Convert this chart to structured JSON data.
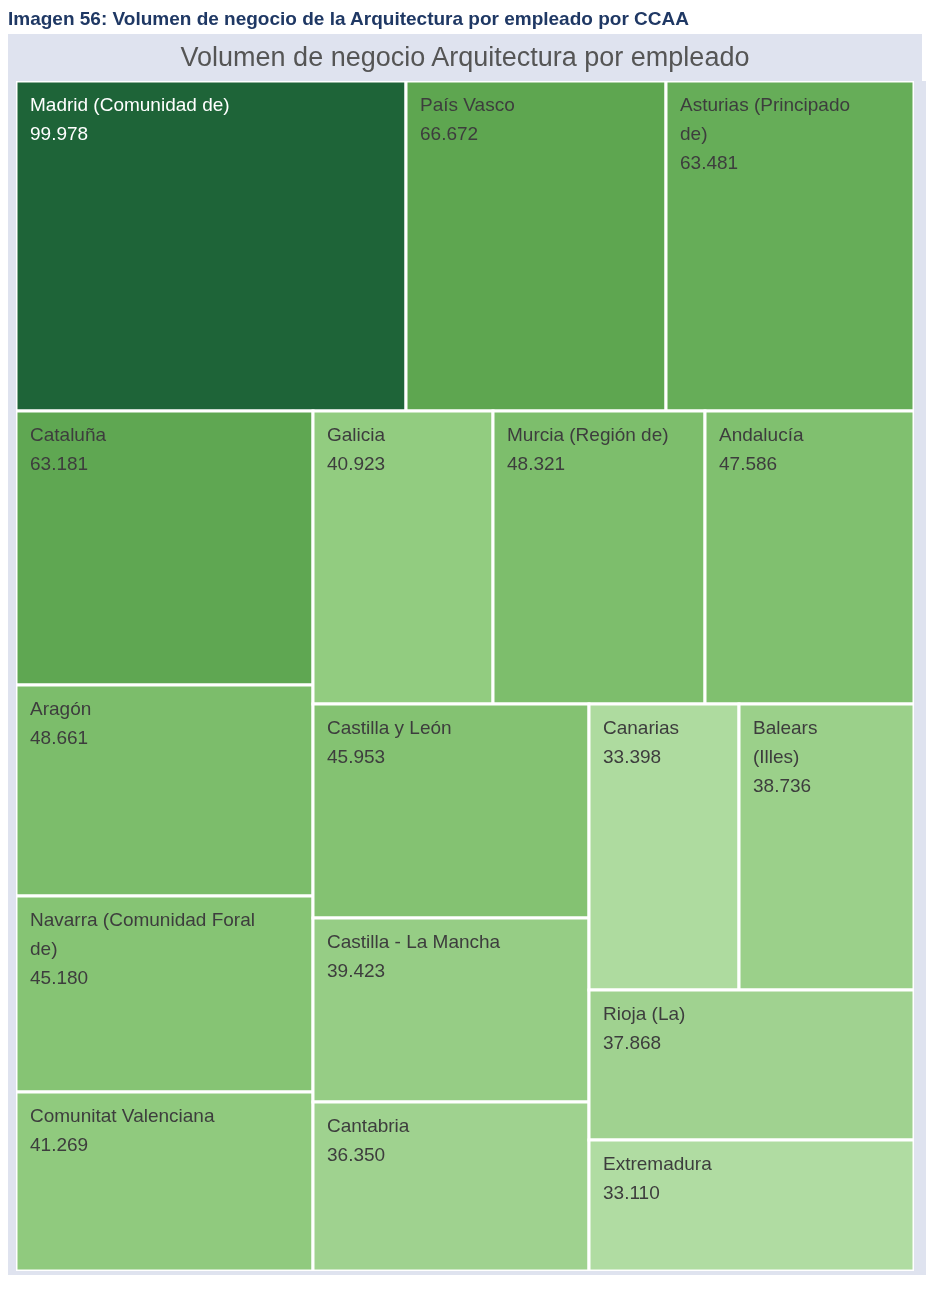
{
  "chart_data": {
    "type": "other",
    "title": "Imagen 56: Volumen de negocio de la Arquitectura por empleado por CCAA",
    "subtitle": "Volumen de negocio Arquitectura por empleado",
    "categories": [
      "Madrid (Comunidad de)",
      "País Vasco",
      "Asturias (Principado de)",
      "Cataluña",
      "Aragón",
      "Navarra (Comunidad Foral de)",
      "Comunitat Valenciana",
      "Galicia",
      "Murcia (Región de)",
      "Andalucía",
      "Castilla y León",
      "Castilla - La Mancha",
      "Cantabria",
      "Canarias",
      "Balears (Illes)",
      "Rioja (La)",
      "Extremadura"
    ],
    "values": [
      99978,
      66672,
      63481,
      63181,
      48661,
      45180,
      41269,
      40923,
      48321,
      47586,
      45953,
      39423,
      36350,
      33398,
      38736,
      37868,
      33110
    ],
    "value_labels": [
      "99.978",
      "66.672",
      "63.481",
      "63.181",
      "48.661",
      "45.180",
      "41.269",
      "40.923",
      "48.321",
      "47.586",
      "45.953",
      "39.423",
      "36.350",
      "33.398",
      "38.736",
      "37.868",
      "33.110"
    ],
    "colors": [
      "#1e6438",
      "#5ea650",
      "#66ad58",
      "#5fa752",
      "#7cbd6b",
      "#86c474",
      "#90ca7e",
      "#92cc80",
      "#7dbe6c",
      "#80c06f",
      "#84c272",
      "#96cd85",
      "#9fd28f",
      "#aedb9f",
      "#9bd08a",
      "#a0d290",
      "#b0dca2"
    ]
  }
}
